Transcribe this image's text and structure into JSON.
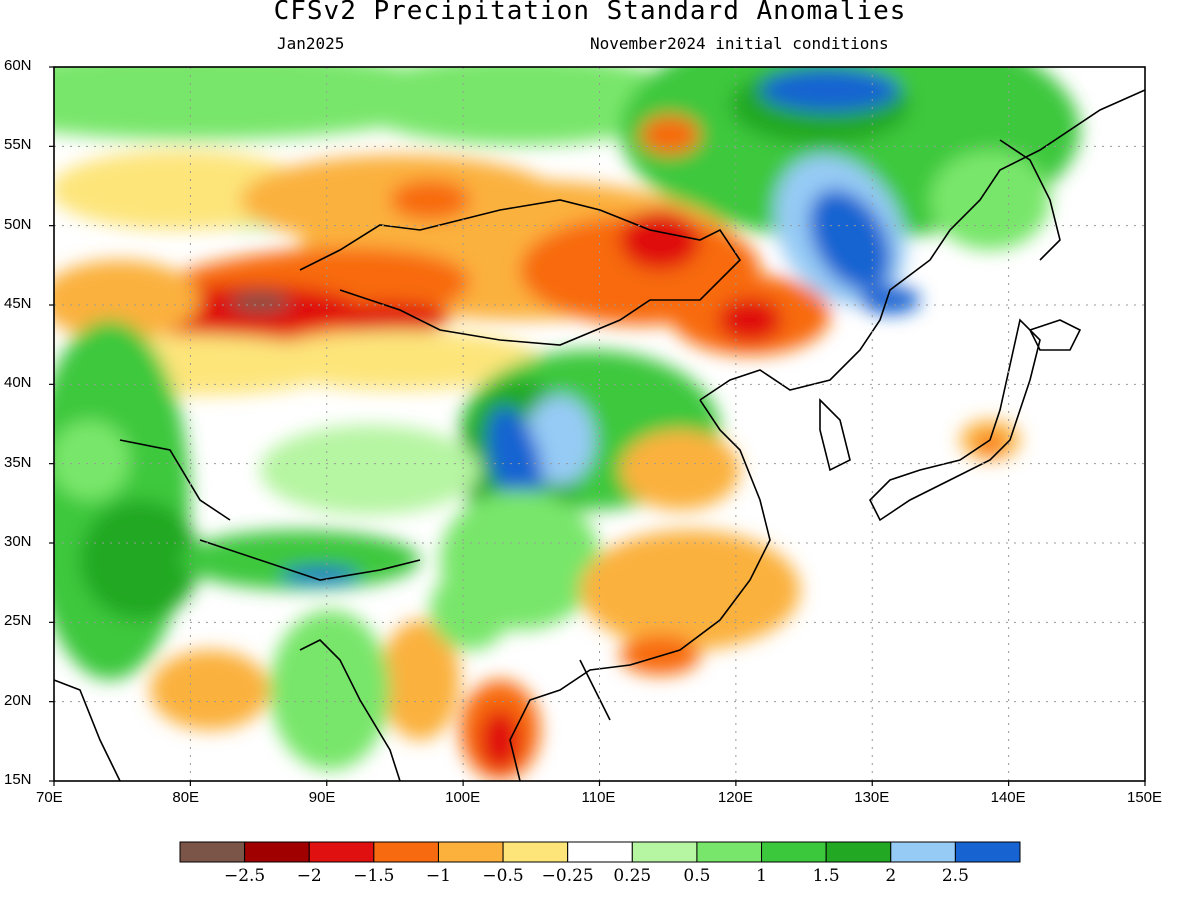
{
  "header": {
    "title": "CFSv2 Precipitation Standard Anomalies",
    "left_subtitle": "Jan2025",
    "right_subtitle": "November2024 initial conditions"
  },
  "axes": {
    "lat_labels": [
      "60N",
      "55N",
      "50N",
      "45N",
      "40N",
      "35N",
      "30N",
      "25N",
      "20N",
      "15N"
    ],
    "lon_labels": [
      "70E",
      "80E",
      "90E",
      "100E",
      "110E",
      "120E",
      "130E",
      "140E",
      "150E"
    ]
  },
  "colorbar": {
    "colors": [
      "#7b5548",
      "#a00000",
      "#e01010",
      "#f86a10",
      "#fbb13c",
      "#fde57a",
      "#ffffff",
      "#b6f5a2",
      "#78e66a",
      "#3cc83c",
      "#22a822",
      "#96cbf5",
      "#1763d2"
    ],
    "tick_labels": [
      "−2.5",
      "−2",
      "−1.5",
      "−1",
      "−0.5",
      "−0.25",
      "0.25",
      "0.5",
      "1",
      "1.5",
      "2",
      "2.5"
    ]
  },
  "palette": {
    "brown": "#7b5548",
    "darkred": "#a00000",
    "red": "#e01010",
    "orange": "#f86a10",
    "lightorange": "#fbb13c",
    "yellow": "#fde57a",
    "white": "#ffffff",
    "palegreen": "#b6f5a2",
    "lightgreen": "#78e66a",
    "green": "#3cc83c",
    "darkgreen": "#22a822",
    "lightblue": "#96cbf5",
    "blue": "#1763d2"
  }
}
